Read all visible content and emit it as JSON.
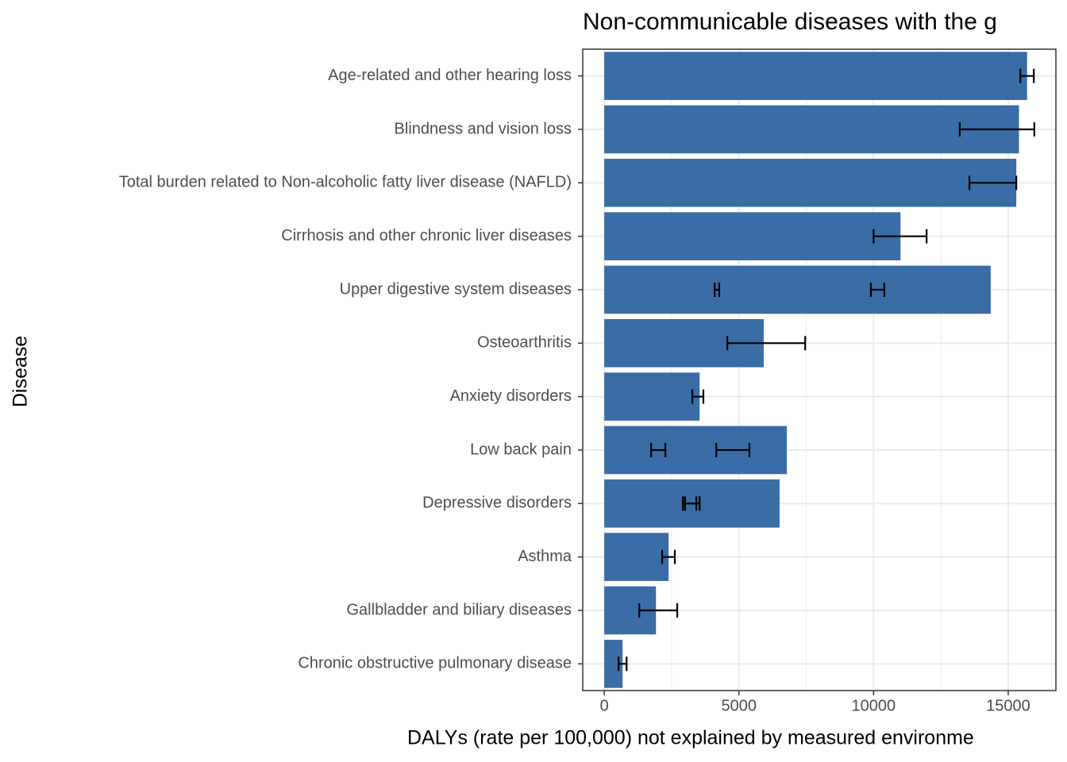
{
  "chart_data": {
    "type": "bar",
    "orientation": "horizontal",
    "title": "Non-communicable diseases with the g",
    "x_label": "DALYs (rate per 100,000) not explained by measured environme",
    "y_label": "Disease",
    "categories": [
      "Age-related and other hearing loss",
      "Blindness and vision loss",
      "Total burden related to Non-alcoholic fatty liver disease (NAFLD)",
      "Cirrhosis and other chronic liver diseases",
      "Upper digestive system diseases",
      "Osteoarthritis",
      "Anxiety disorders",
      "Low back pain",
      "Depressive disorders",
      "Asthma",
      "Gallbladder and biliary diseases",
      "Chronic obstructive pulmonary disease"
    ],
    "values": [
      15700,
      15400,
      15300,
      11000,
      14350,
      5920,
      3540,
      6780,
      6510,
      2390,
      1920,
      680
    ],
    "error_low": [
      15450,
      13200,
      13560,
      10000,
      4100,
      4570,
      3270,
      1740,
      2920,
      2150,
      1300,
      530
    ],
    "error_high": [
      15950,
      15970,
      15300,
      11970,
      4270,
      7460,
      3680,
      2270,
      3420,
      2620,
      2710,
      830
    ],
    "error2_low": [
      null,
      null,
      null,
      null,
      9900,
      null,
      null,
      4160,
      3000,
      null,
      null,
      null
    ],
    "error2_high": [
      null,
      null,
      null,
      null,
      10400,
      null,
      null,
      5390,
      3540,
      null,
      null,
      null
    ],
    "color": "#3a6ca6",
    "xlim": [
      -800,
      16770
    ],
    "xticks": [
      0,
      5000,
      10000,
      15000
    ],
    "minor_xticks": [
      2500,
      7500,
      12500
    ],
    "grid": true
  }
}
